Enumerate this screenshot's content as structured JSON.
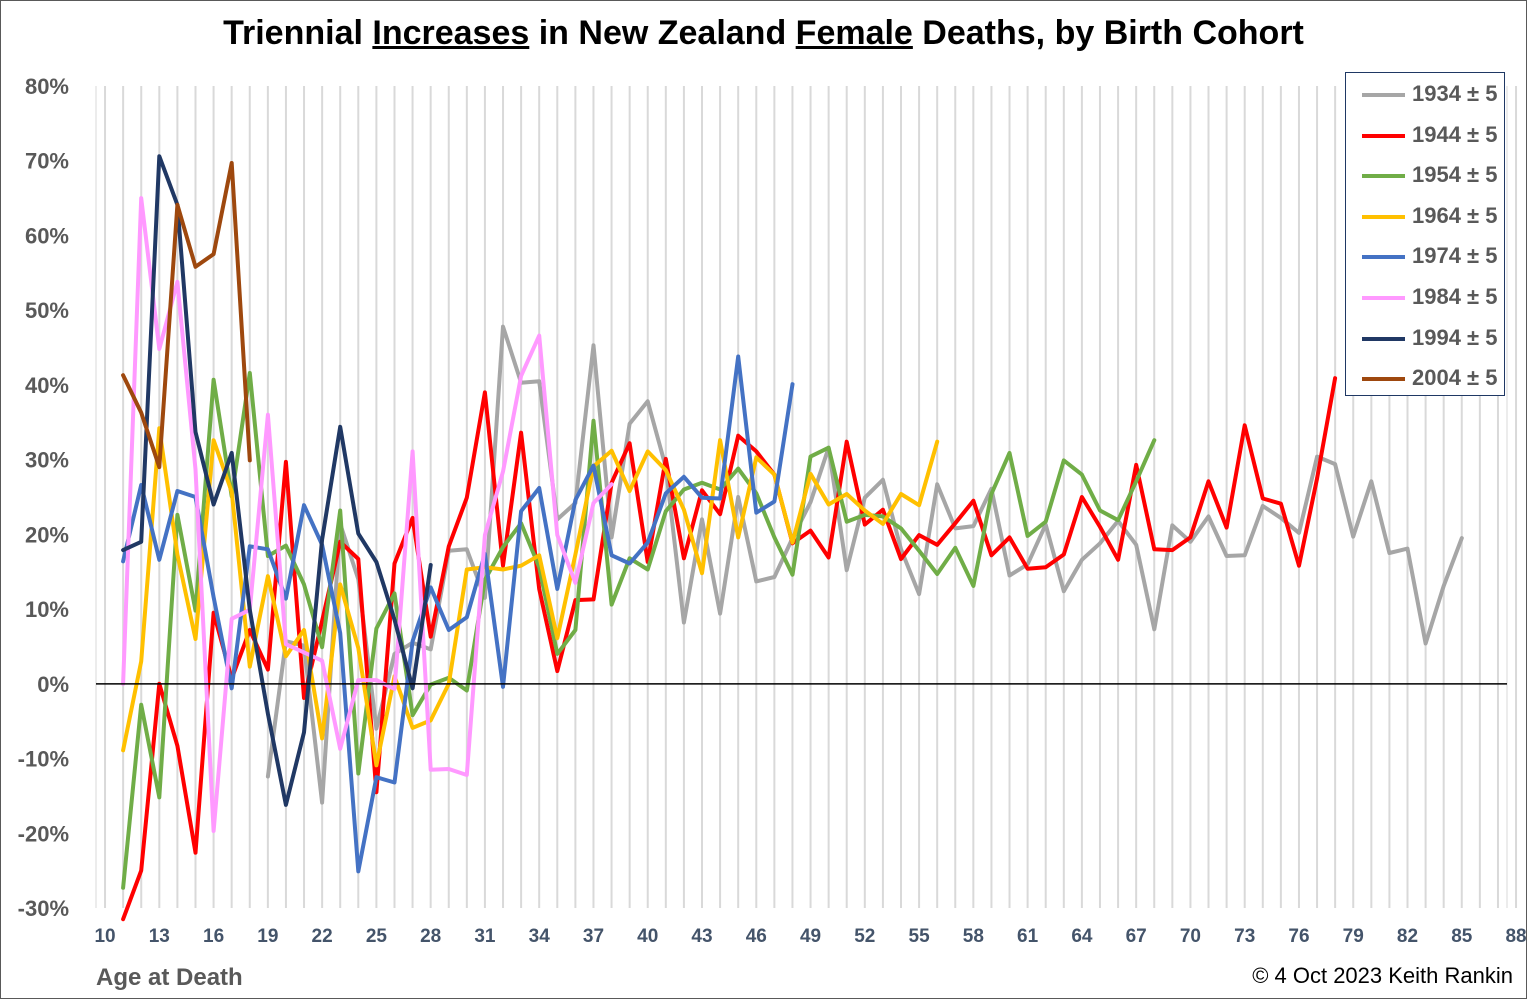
{
  "chart_data": {
    "type": "line",
    "title": {
      "parts": [
        {
          "text": "Triennial ",
          "underline": false
        },
        {
          "text": "Increases",
          "underline": true
        },
        {
          "text": " in New Zealand ",
          "underline": false
        },
        {
          "text": "Female",
          "underline": true
        },
        {
          "text": " Deaths, by Birth Cohort",
          "underline": false
        }
      ]
    },
    "xlabel": "Age at Death",
    "ylabel": "",
    "credit": "© 4 Oct 2023 Keith Rankin",
    "x_range": [
      10,
      88
    ],
    "x_ticks": [
      10,
      13,
      16,
      19,
      22,
      25,
      28,
      31,
      34,
      37,
      40,
      43,
      46,
      49,
      52,
      55,
      58,
      61,
      64,
      67,
      70,
      73,
      76,
      79,
      82,
      85,
      88
    ],
    "y_range": [
      -30,
      80
    ],
    "y_ticks": [
      -30,
      -20,
      -10,
      0,
      10,
      20,
      30,
      40,
      50,
      60,
      70,
      80
    ],
    "y_tick_labels": [
      "-30%",
      "-20%",
      "-10%",
      "0%",
      "10%",
      "20%",
      "30%",
      "40%",
      "50%",
      "60%",
      "70%",
      "80%"
    ],
    "grid": "vertical gridlines at every age",
    "legend_position": "top-right",
    "series": [
      {
        "name": "1934 ± 5",
        "color": "#a6a6a6",
        "x_start": 19,
        "values": [
          -12.4,
          5.7,
          5.1,
          -15.9,
          21.4,
          14.0,
          -6.0,
          4.0,
          5.5,
          4.6,
          17.8,
          18.0,
          11.5,
          47.8,
          40.3,
          40.5,
          22.0,
          24.2,
          45.3,
          19.6,
          34.8,
          37.8,
          29.0,
          8.2,
          22.0,
          9.4,
          25.0,
          13.7,
          14.3,
          19.5,
          24.3,
          31.6,
          15.2,
          24.9,
          27.3,
          18.0,
          12.0,
          26.7,
          20.8,
          21.1,
          26.1,
          14.5,
          16.0,
          21.3,
          12.4,
          16.6,
          18.8,
          21.8,
          18.6,
          7.3,
          21.2,
          19.0,
          22.4,
          17.1,
          17.2,
          23.8,
          22.2,
          20.2,
          30.4,
          29.4,
          19.7,
          27.1,
          17.5,
          18.1,
          5.4,
          13.1,
          19.5
        ]
      },
      {
        "name": "1944 ± 5",
        "color": "#ff0000",
        "x_start": 11,
        "values": [
          -31.5,
          -25.0,
          0.0,
          -8.3,
          -22.6,
          9.5,
          0.7,
          7.2,
          1.9,
          29.7,
          -1.9,
          8.4,
          19.0,
          16.7,
          -14.5,
          16.1,
          22.2,
          6.3,
          18.4,
          24.9,
          39.0,
          15.8,
          33.6,
          12.7,
          1.7,
          11.2,
          11.3,
          26.9,
          32.2,
          16.3,
          30.1,
          16.8,
          25.9,
          22.7,
          33.2,
          31.1,
          28.0,
          18.8,
          20.5,
          16.9,
          32.4,
          21.3,
          23.3,
          16.7,
          19.9,
          18.6,
          21.5,
          24.5,
          17.2,
          19.6,
          15.4,
          15.6,
          17.3,
          25.0,
          21.0,
          16.6,
          29.3,
          18.0,
          17.9,
          19.6,
          27.1,
          20.9,
          34.6,
          24.8,
          24.1,
          15.8,
          27.5,
          40.9
        ]
      },
      {
        "name": "1954 ± 5",
        "color": "#70ad47",
        "x_start": 11,
        "values": [
          -27.3,
          -2.8,
          -15.2,
          22.6,
          9.8,
          40.7,
          25.1,
          41.6,
          17.1,
          18.5,
          13.3,
          4.9,
          23.2,
          -12.0,
          7.4,
          12.1,
          -4.2,
          -0.1,
          0.8,
          -0.9,
          13.9,
          18.3,
          21.5,
          15.6,
          4.0,
          7.2,
          35.2,
          10.6,
          16.8,
          15.3,
          23.1,
          26.0,
          26.9,
          26.0,
          28.8,
          25.5,
          19.6,
          14.6,
          30.4,
          31.6,
          21.7,
          22.6,
          22.4,
          20.8,
          17.8,
          14.7,
          18.2,
          13.1,
          25.4,
          30.9,
          19.8,
          21.7,
          29.9,
          28.0,
          23.2,
          21.9,
          27.1,
          32.6
        ]
      },
      {
        "name": "1964 ± 5",
        "color": "#ffc000",
        "x_start": 11,
        "values": [
          -8.9,
          3.0,
          34.2,
          17.3,
          6.0,
          32.6,
          25.7,
          2.3,
          14.4,
          3.7,
          7.2,
          -7.3,
          13.3,
          4.8,
          -10.9,
          1.0,
          -5.9,
          -4.9,
          0.0,
          15.3,
          15.6,
          15.3,
          15.8,
          17.2,
          6.1,
          17.3,
          29.1,
          31.2,
          25.8,
          31.1,
          28.6,
          23.3,
          14.8,
          32.6,
          19.6,
          30.3,
          28.0,
          18.9,
          28.1,
          24.0,
          25.4,
          23.2,
          21.4,
          25.4,
          23.9,
          32.4
        ]
      },
      {
        "name": "1974 ± 5",
        "color": "#4472c4",
        "x_start": 11,
        "values": [
          16.4,
          26.6,
          16.6,
          25.8,
          25.0,
          11.6,
          -0.6,
          18.4,
          18.0,
          11.4,
          23.9,
          18.6,
          6.8,
          -25.1,
          -12.5,
          -13.2,
          5.7,
          12.9,
          7.2,
          8.9,
          17.4,
          -0.4,
          23.1,
          26.2,
          12.7,
          24.6,
          29.2,
          17.2,
          16.1,
          18.9,
          25.5,
          27.7,
          24.9,
          24.8,
          43.8,
          22.9,
          24.4,
          40.1
        ]
      },
      {
        "name": "1984 ± 5",
        "color": "#ff99ff",
        "x_start": 11,
        "values": [
          0.0,
          65.0,
          44.8,
          53.8,
          28.7,
          -19.7,
          8.7,
          9.9,
          36.0,
          5.3,
          4.2,
          3.1,
          -8.7,
          0.5,
          0.5,
          -0.7,
          31.1,
          -11.5,
          -11.4,
          -12.2,
          19.9,
          28.4,
          41.2,
          46.6,
          19.9,
          13.5,
          24.2,
          26.7
        ]
      },
      {
        "name": "1994 ± 5",
        "color": "#203864",
        "x_start": 11,
        "values": [
          17.9,
          19.0,
          70.6,
          64.1,
          33.7,
          24.0,
          30.9,
          9.9,
          -4.0,
          -16.2,
          -6.5,
          19.3,
          34.4,
          20.1,
          16.3,
          8.6,
          -0.6,
          15.9
        ]
      },
      {
        "name": "2004 ± 5",
        "color": "#9e480e",
        "x_start": 11,
        "values": [
          41.3,
          36.3,
          29.0,
          64.1,
          55.8,
          57.5,
          69.7,
          29.9
        ]
      }
    ]
  }
}
